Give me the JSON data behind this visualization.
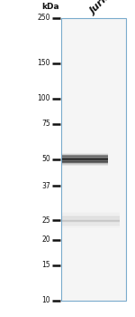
{
  "fig_width": 1.5,
  "fig_height": 3.5,
  "dpi": 100,
  "bg_color": "#ffffff",
  "lane_label": "Jurkat",
  "kda_label": "kDa",
  "markers": [
    250,
    150,
    100,
    75,
    50,
    37,
    25,
    20,
    15,
    10
  ],
  "band_main_kda": 50,
  "band_faint_kda": 25,
  "lane_border_color": "#7aabcc",
  "lane_fill_color": "#f5f5f5",
  "marker_line_color": "#111111",
  "marker_label_color": "#111111",
  "band_dark_color": "#1a1a1a",
  "band_faint_color": "#bbbbbb"
}
